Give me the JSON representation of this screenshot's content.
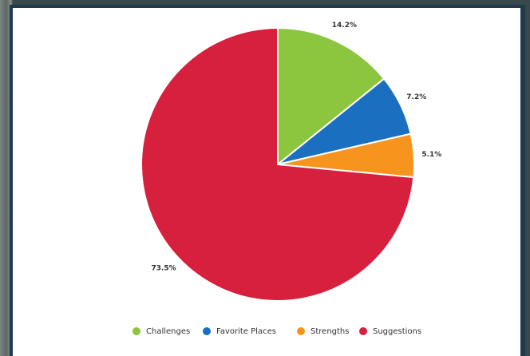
{
  "chart_data": {
    "type": "pie",
    "categories": [
      "Challenges",
      "Favorite Places",
      "Strengths",
      "Suggestions"
    ],
    "values": [
      14.2,
      7.2,
      5.1,
      73.5
    ],
    "value_labels": [
      "14.2%",
      "7.2%",
      "5.1%",
      "73.5%"
    ],
    "colors": [
      "#8cc63f",
      "#1b6fc0",
      "#f7941d",
      "#d6203e"
    ],
    "legend": "bottom"
  }
}
